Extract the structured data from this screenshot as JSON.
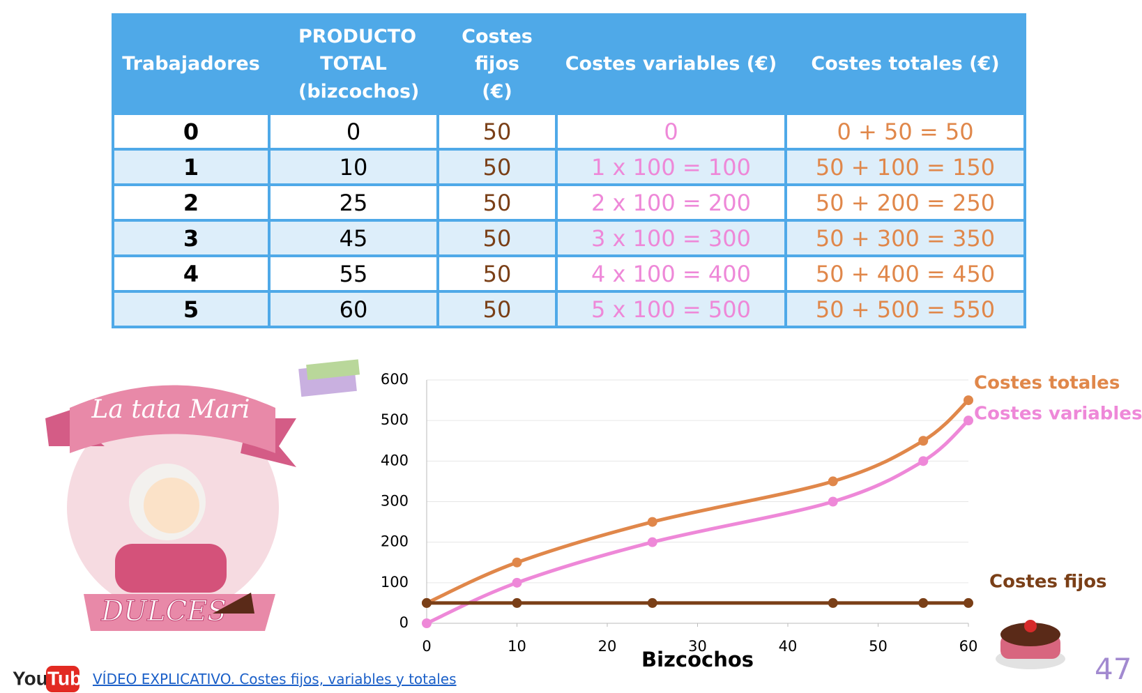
{
  "table": {
    "columns": [
      "Trabajadores",
      "PRODUCTO TOTAL (bizcochos)",
      "Costes fijos (€)",
      "Costes variables (€)",
      "Costes totales (€)"
    ],
    "rows": [
      [
        "0",
        "0",
        "50",
        "0",
        "0 + 50 = 50"
      ],
      [
        "1",
        "10",
        "50",
        "1 x 100 = 100",
        "50 + 100 = 150"
      ],
      [
        "2",
        "25",
        "50",
        "2 x 100 = 200",
        "50 + 200 = 250"
      ],
      [
        "3",
        "45",
        "50",
        "3 x 100 = 300",
        "50 + 300 = 350"
      ],
      [
        "4",
        "55",
        "50",
        "4 x 100 = 400",
        "50 + 400 = 450"
      ],
      [
        "5",
        "60",
        "50",
        "5 x 100 = 500",
        "50 + 500 = 550"
      ]
    ]
  },
  "chart_data": {
    "type": "line",
    "x_label": "Bizcochos",
    "x": [
      0,
      10,
      25,
      45,
      55,
      60
    ],
    "series": [
      {
        "name": "Costes totales",
        "color": "#e0874a",
        "values": [
          50,
          150,
          250,
          350,
          450,
          550
        ]
      },
      {
        "name": "Costes variables",
        "color": "#ee88d8",
        "values": [
          0,
          100,
          200,
          300,
          400,
          500
        ]
      },
      {
        "name": "Costes fijos",
        "color": "#7a3f17",
        "values": [
          50,
          50,
          50,
          50,
          50,
          50
        ]
      }
    ],
    "xlim": [
      0,
      60
    ],
    "xticks": [
      0,
      10,
      20,
      30,
      40,
      50,
      60
    ],
    "ylim": [
      0,
      600
    ],
    "yticks": [
      0,
      100,
      200,
      300,
      400,
      500,
      600
    ],
    "grid": true
  },
  "logo": {
    "title": "La tata Mari",
    "subtitle": "DULCES"
  },
  "youtube": {
    "you": "You",
    "tube": "Tube"
  },
  "link": "VÍDEO EXPLICATIVO. Costes fijos, variables y totales",
  "page_number": "47"
}
